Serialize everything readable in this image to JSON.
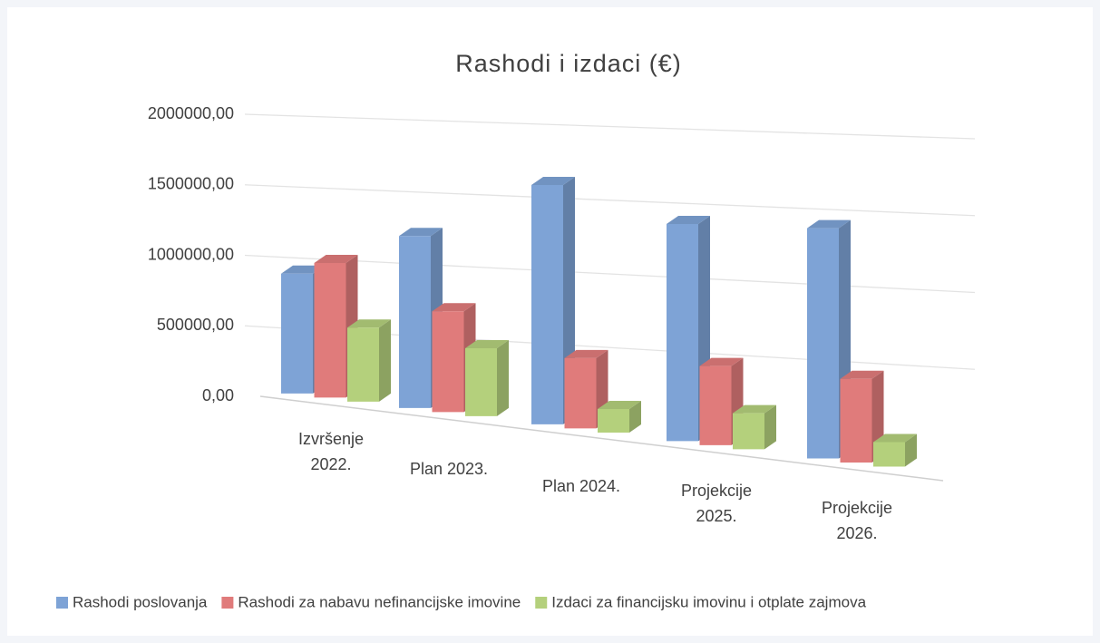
{
  "chart_data": {
    "type": "bar3d",
    "title": "Rashodi i izdaci (€)",
    "categories": [
      "Izvršenje 2022.",
      "Plan 2023.",
      "Plan 2024.",
      "Projekcije 2025.",
      "Projekcije 2026."
    ],
    "series": [
      {
        "name": "Rashodi poslovanja",
        "color": "#7ea3d6",
        "values": [
          850000,
          1200000,
          1640000,
          1460000,
          1520000
        ]
      },
      {
        "name": "Rashodi za nabavu nefinancijske imovine",
        "color": "#e07b7b",
        "values": [
          950000,
          700000,
          480000,
          530000,
          550000
        ]
      },
      {
        "name": "Izdaci za financijsku imovinu i otplate zajmova",
        "color": "#b4d07c",
        "values": [
          520000,
          470000,
          160000,
          240000,
          160000
        ]
      }
    ],
    "ylim": [
      0,
      2000000
    ],
    "yticks": [
      {
        "value": 0,
        "label": "0,00"
      },
      {
        "value": 500000,
        "label": "500000,00"
      },
      {
        "value": 1000000,
        "label": "1000000,00"
      },
      {
        "value": 1500000,
        "label": "1500000,00"
      },
      {
        "value": 2000000,
        "label": "2000000,00"
      }
    ],
    "grid": true,
    "legend": "bottom"
  }
}
